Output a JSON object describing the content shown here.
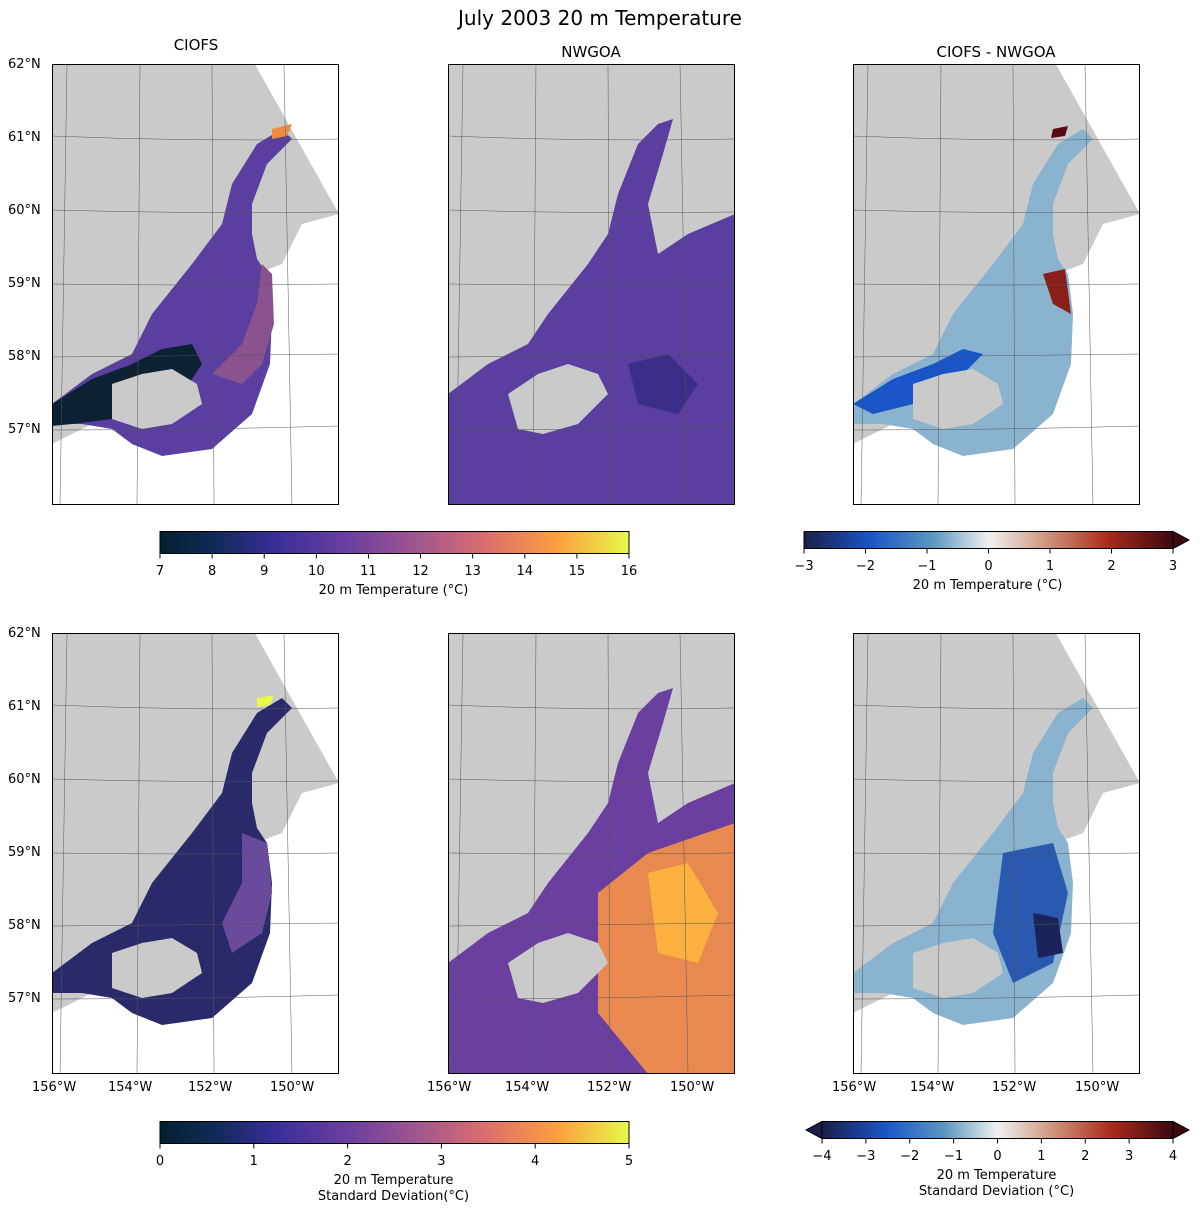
{
  "figure": {
    "title": "July 2003 20 m Temperature",
    "column_titles": [
      "CIOFS",
      "NWGOA",
      "CIOFS - NWGOA"
    ],
    "lat_ticks": [
      "62°N",
      "61°N",
      "60°N",
      "59°N",
      "58°N",
      "57°N"
    ],
    "lon_ticks": [
      "156°W",
      "154°W",
      "152°W",
      "150°W"
    ]
  },
  "colors": {
    "land": "#cacaca",
    "ocean_background": "#ffffff",
    "gridline": "#555555",
    "thermal_low": "#04202e",
    "thermal_mid": "#6a3fa0",
    "thermal_high": "#e7f84a",
    "diff_low": "#1b1e48",
    "diff_zero": "#f0f0f0",
    "diff_high": "#3c0911"
  },
  "colorbars": {
    "mean": {
      "label": "20 m Temperature (°C)",
      "ticks": [
        "7",
        "8",
        "9",
        "10",
        "11",
        "12",
        "13",
        "14",
        "15",
        "16"
      ],
      "range": [
        7,
        16
      ],
      "colormap": "thermal",
      "extend": "neither"
    },
    "mean_diff": {
      "label": "20 m Temperature (°C)",
      "ticks": [
        "−3",
        "−2",
        "−1",
        "0",
        "1",
        "2",
        "3"
      ],
      "range": [
        -3,
        3
      ],
      "colormap": "balance",
      "extend": "max"
    },
    "std": {
      "label": "20 m Temperature\nStandard Deviation(°C)",
      "ticks": [
        "0",
        "1",
        "2",
        "3",
        "4",
        "5"
      ],
      "range": [
        0,
        5
      ],
      "colormap": "thermal",
      "extend": "neither"
    },
    "std_diff": {
      "label": "20 m Temperature\nStandard Deviation (°C)",
      "ticks": [
        "−4",
        "−3",
        "−2",
        "−1",
        "0",
        "1",
        "2",
        "3",
        "4"
      ],
      "range": [
        -4,
        4
      ],
      "colormap": "balance",
      "extend": "both"
    }
  }
}
